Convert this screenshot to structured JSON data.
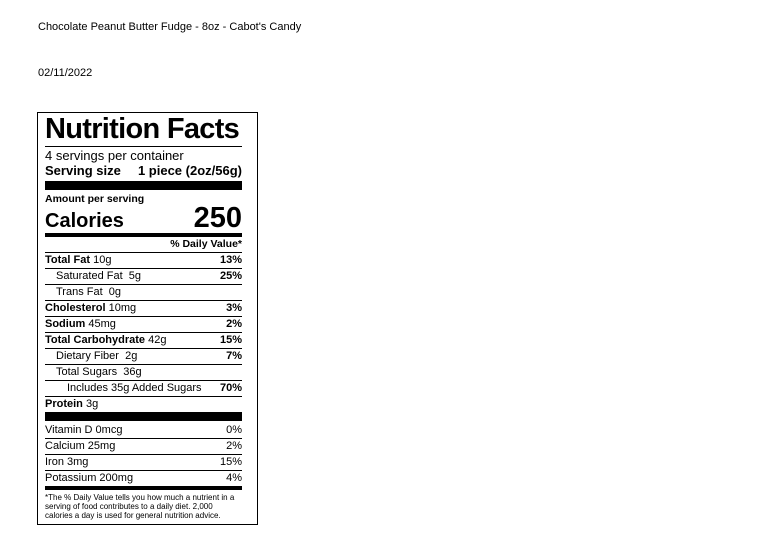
{
  "header": {
    "product": "Chocolate Peanut Butter Fudge - 8oz - Cabot's Candy",
    "date": "02/11/2022"
  },
  "label": {
    "title": "Nutrition Facts",
    "servings": "4 servings per container",
    "serving_size_label": "Serving size",
    "serving_size_value": "1 piece (2oz/56g)",
    "amount_per_serving": "Amount per serving",
    "calories_label": "Calories",
    "calories_value": "250",
    "dv_header": "% Daily Value*",
    "nutrients": [
      {
        "name": "Total Fat",
        "amount": "10g",
        "dv": "13%"
      },
      {
        "name": "Saturated Fat",
        "amount": "5g",
        "dv": "25%"
      },
      {
        "name": "Trans Fat",
        "amount": "0g",
        "dv": ""
      },
      {
        "name": "Cholesterol",
        "amount": "10mg",
        "dv": "3%"
      },
      {
        "name": "Sodium",
        "amount": "45mg",
        "dv": "2%"
      },
      {
        "name": "Total Carbohydrate",
        "amount": "42g",
        "dv": "15%"
      },
      {
        "name": "Dietary Fiber",
        "amount": "2g",
        "dv": "7%"
      },
      {
        "name": "Total Sugars",
        "amount": "36g",
        "dv": ""
      },
      {
        "name": "Includes 35g Added Sugars",
        "amount": "",
        "dv": "70%"
      },
      {
        "name": "Protein",
        "amount": "3g",
        "dv": ""
      }
    ],
    "vitamins": [
      {
        "name": "Vitamin D",
        "amount": "0mcg",
        "dv": "0%"
      },
      {
        "name": "Calcium",
        "amount": "25mg",
        "dv": "2%"
      },
      {
        "name": "Iron",
        "amount": "3mg",
        "dv": "15%"
      },
      {
        "name": "Potassium",
        "amount": "200mg",
        "dv": "4%"
      }
    ],
    "footnote": "*The % Daily Value tells you how much a nutrient in a serving of food contributes to a daily diet. 2,000 calories a day is used for general nutrition advice."
  }
}
